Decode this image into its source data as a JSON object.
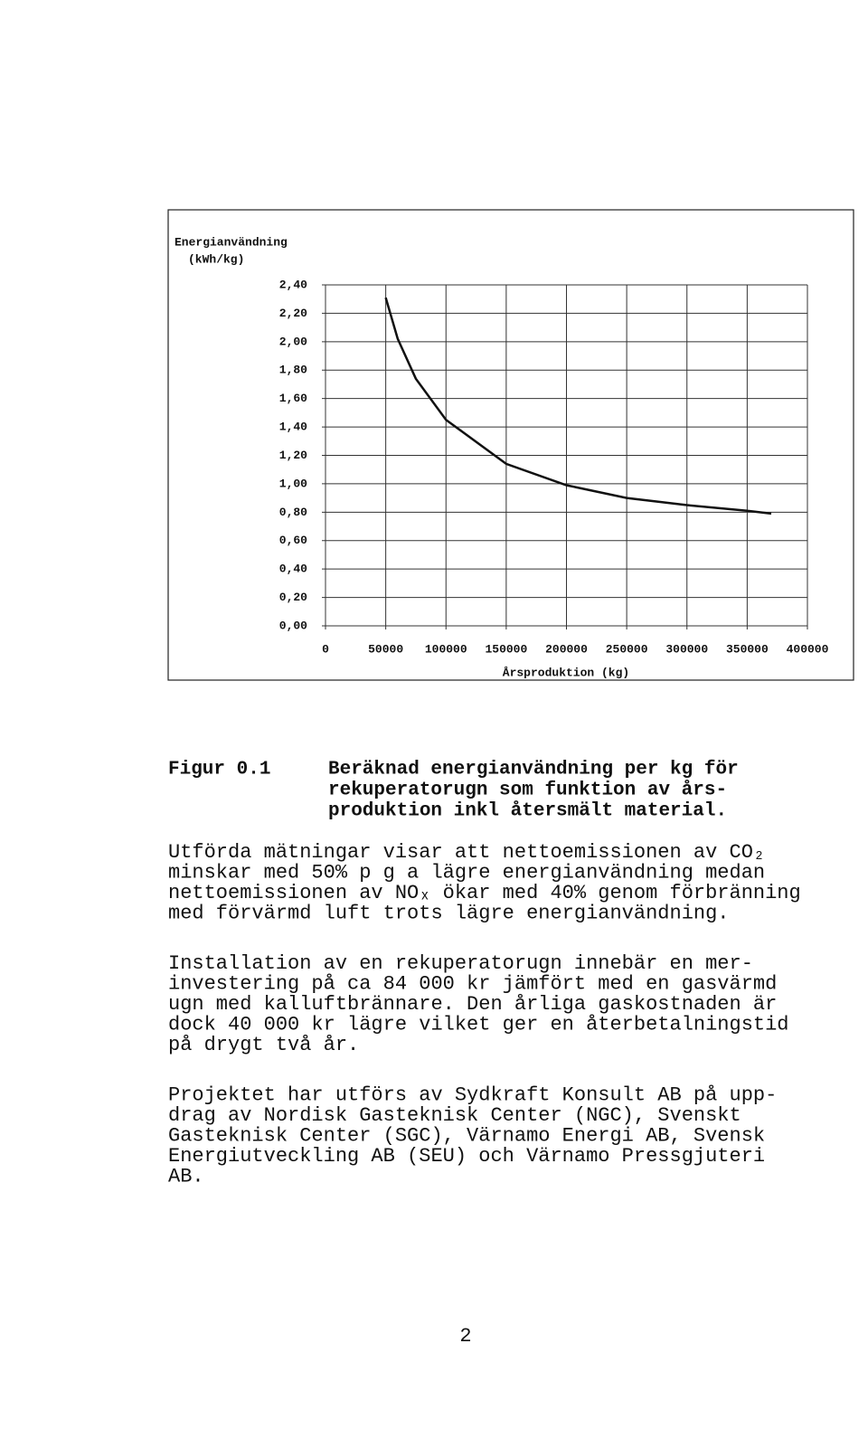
{
  "chart_data": {
    "type": "line",
    "y_label": [
      "Energianvändning",
      "(kWh/kg)"
    ],
    "x_label": "Årsproduktion (kg)",
    "x": [
      50000,
      60000,
      75000,
      100000,
      150000,
      200000,
      250000,
      300000,
      350000,
      370000
    ],
    "values": [
      2.31,
      2.02,
      1.74,
      1.45,
      1.14,
      0.99,
      0.9,
      0.85,
      0.81,
      0.79
    ],
    "color": "#111111",
    "xlim": [
      0,
      400000
    ],
    "xticks": [
      0,
      50000,
      100000,
      150000,
      200000,
      250000,
      300000,
      350000,
      400000
    ],
    "ylim": [
      0,
      2.4
    ],
    "yticks": [
      {
        "value": 0,
        "label": "0,00"
      },
      {
        "value": 0.2,
        "label": "0,20"
      },
      {
        "value": 0.4,
        "label": "0,40"
      },
      {
        "value": 0.6,
        "label": "0,60"
      },
      {
        "value": 0.8,
        "label": "0,80"
      },
      {
        "value": 1.0,
        "label": "1,00"
      },
      {
        "value": 1.2,
        "label": "1,20"
      },
      {
        "value": 1.4,
        "label": "1,40"
      },
      {
        "value": 1.6,
        "label": "1,60"
      },
      {
        "value": 1.8,
        "label": "1,80"
      },
      {
        "value": 2.0,
        "label": "2,00"
      },
      {
        "value": 2.2,
        "label": "2,20"
      },
      {
        "value": 2.4,
        "label": "2,40"
      }
    ],
    "grid": true
  },
  "caption": {
    "label": "Figur 0.1",
    "lines": [
      "Beräknad energianvändning per kg för",
      "rekuperatorugn som funktion av års-",
      "produktion inkl återsmält material."
    ]
  },
  "paragraphs": [
    [
      "Utförda mätningar visar att nettoemissionen av CO₂",
      "minskar med 50% p g a lägre energianvändning medan",
      "nettoemissionen av NOₓ ökar med 40% genom förbränning",
      "med förvärmd luft trots lägre energianvändning."
    ],
    [
      "Installation av en rekuperatorugn innebär en mer-",
      "investering på ca 84 000 kr jämfört med en  gasvärmd",
      "ugn med kalluftbrännare. Den årliga gaskostnaden är",
      "dock 40 000 kr lägre vilket ger en återbetalningstid",
      "på drygt två år."
    ],
    [
      "Projektet har utförs av Sydkraft Konsult AB på upp-",
      "drag av Nordisk Gasteknisk Center (NGC), Svenskt",
      "Gasteknisk Center (SGC), Värnamo Energi AB, Svensk",
      "Energiutveckling AB (SEU) och Värnamo Pressgjuteri",
      "AB."
    ]
  ],
  "page_number": "2"
}
